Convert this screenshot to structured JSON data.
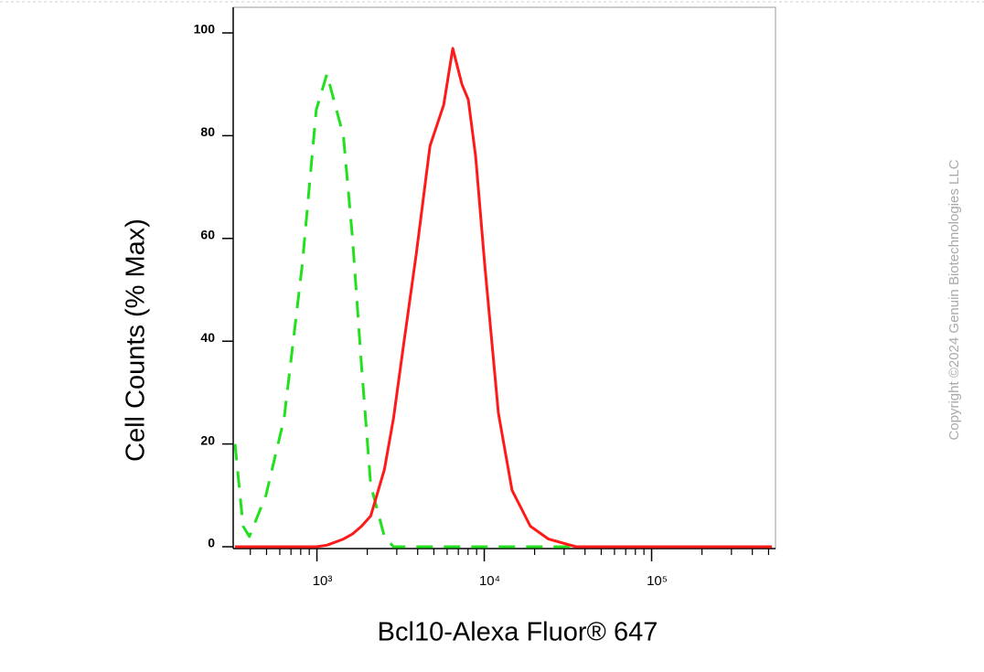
{
  "chart_data": {
    "type": "line",
    "x_label": "Bcl10-Alexa Fluor® 647",
    "y_label": "Cell Counts (% Max)",
    "watermark": "Copyright ©2024 Genuin Biotechnologies LLC",
    "log_x": true,
    "xlim": [
      316,
      550000
    ],
    "ylim": [
      0,
      105
    ],
    "xticks": [
      {
        "value": 1000,
        "label": "10³"
      },
      {
        "value": 10000,
        "label": "10⁴"
      },
      {
        "value": 100000,
        "label": "10⁵"
      }
    ],
    "xminorticks": [
      400,
      500,
      600,
      700,
      800,
      900,
      2000,
      3000,
      4000,
      5000,
      6000,
      7000,
      8000,
      9000,
      20000,
      30000,
      40000,
      50000,
      60000,
      70000,
      80000,
      90000,
      200000,
      300000,
      400000,
      500000
    ],
    "yticks": [
      0,
      20,
      40,
      60,
      80,
      100
    ],
    "x": [
      324,
      362,
      395,
      496,
      637,
      818,
      990,
      1148,
      1439,
      1632,
      1849,
      2097,
      2531,
      2869,
      3252,
      3926,
      4742,
      5722,
      6486,
      7356,
      8031,
      8876,
      10060,
      12150,
      14660,
      18840,
      24220,
      35300,
      84900,
      524000
    ],
    "series": [
      {
        "color": "#22e01e",
        "dashed": true,
        "values": [
          20,
          4,
          2,
          10,
          25,
          55,
          85,
          92,
          80,
          60,
          35,
          12,
          2,
          0,
          0,
          0,
          0,
          0,
          0,
          0,
          0,
          0,
          0,
          0,
          0,
          0,
          0,
          0,
          0,
          0
        ]
      },
      {
        "color": "#ff1a1a",
        "dashed": false,
        "values": [
          0,
          0,
          0,
          0,
          0,
          0,
          0,
          0.3,
          1.5,
          2.5,
          4,
          6,
          15,
          25,
          38,
          57,
          78,
          86,
          97,
          90,
          87,
          76,
          55,
          26,
          11,
          4,
          1.5,
          0,
          0,
          0
        ]
      }
    ]
  }
}
